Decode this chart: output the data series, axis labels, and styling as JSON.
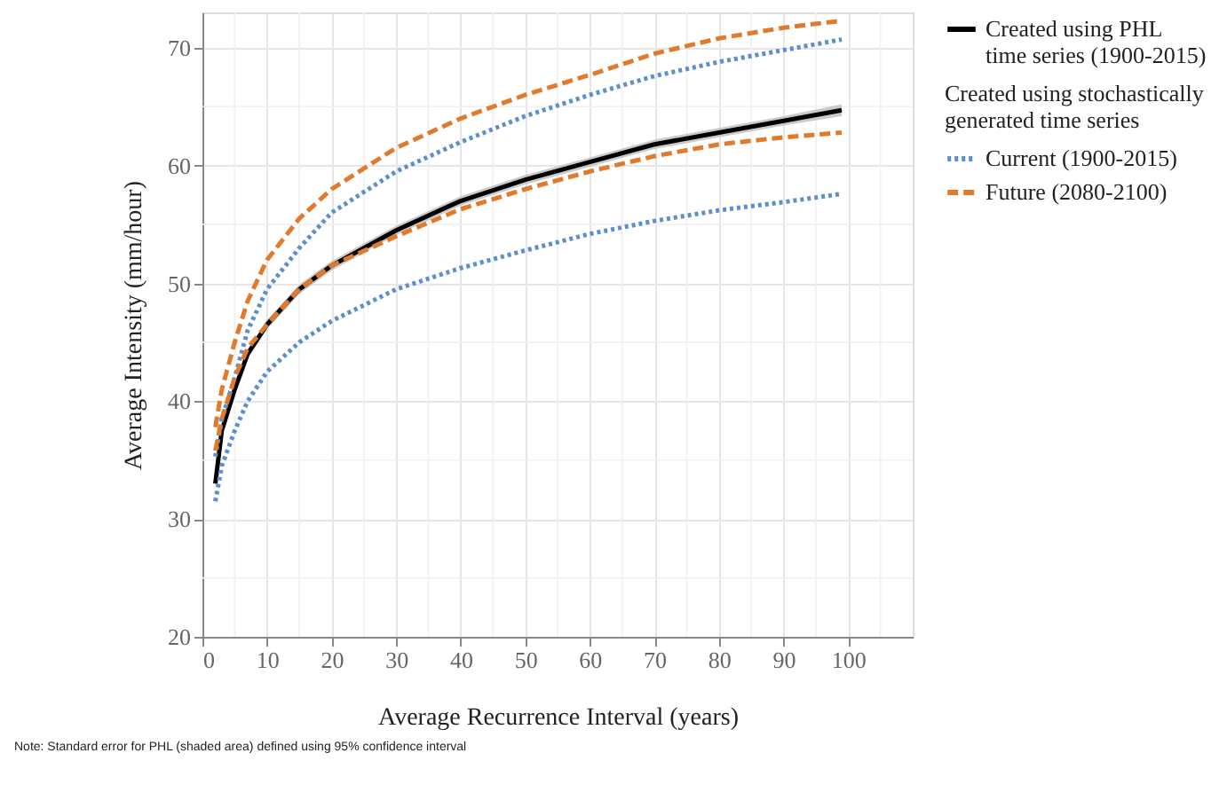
{
  "chart_data": {
    "type": "line",
    "xlabel": "Average Recurrence Interval (years)",
    "ylabel": "Average Intensity (mm/hour)",
    "legend_title": "Created using stochastically generated time series",
    "xlim": [
      0,
      110
    ],
    "xticks": [
      0,
      10,
      20,
      30,
      40,
      50,
      60,
      70,
      80,
      90,
      100
    ],
    "ylim": [
      20,
      73
    ],
    "yticks": [
      20,
      30,
      40,
      50,
      60,
      70
    ],
    "grid": true,
    "legend": "right",
    "marker": "none",
    "x": [
      2,
      3,
      5,
      7,
      10,
      15,
      20,
      30,
      40,
      50,
      60,
      70,
      80,
      90,
      99
    ],
    "series": [
      {
        "name": "Created using PHL time series (1900-2015)",
        "color": "#000000",
        "line_style": "solid",
        "values": [
          33,
          37.5,
          41,
          44,
          46.5,
          49.5,
          51.5,
          54.5,
          57,
          58.8,
          60.3,
          61.8,
          62.8,
          63.8,
          64.7
        ],
        "lower": [
          32.6,
          37.1,
          40.6,
          43.6,
          46.1,
          49.1,
          51.1,
          54.1,
          56.6,
          58.4,
          59.9,
          61.4,
          62.4,
          63.4,
          64.2
        ],
        "upper": [
          33.4,
          37.9,
          41.4,
          44.4,
          46.9,
          49.9,
          51.9,
          54.9,
          57.4,
          59.2,
          60.7,
          62.2,
          63.2,
          64.2,
          65.2
        ]
      },
      {
        "name": "Current (1900-2015)",
        "color": "#5b8fd0",
        "line_style": "dotted",
        "values": [
          35.3,
          38.5,
          42,
          46,
          49.5,
          53,
          56,
          59.5,
          62,
          64.2,
          66,
          67.6,
          68.8,
          69.8,
          70.7
        ]
      },
      {
        "color": "#5b8fd0",
        "line_style": "dotted",
        "values": [
          31.5,
          34.5,
          37.5,
          40,
          42.5,
          45,
          46.8,
          49.5,
          51.3,
          52.8,
          54.2,
          55.3,
          56.2,
          56.9,
          57.6
        ]
      },
      {
        "name": "Future (2080-2100)",
        "color": "#e07b2e",
        "line_style": "dashed",
        "values": [
          37.8,
          41,
          45,
          48.5,
          52,
          55.5,
          58,
          61.5,
          64,
          66,
          67.7,
          69.5,
          70.8,
          71.7,
          72.3
        ]
      },
      {
        "color": "#e07b2e",
        "line_style": "dashed",
        "values": [
          35.8,
          38.5,
          42,
          44.5,
          46.5,
          49.5,
          51.5,
          54,
          56.3,
          58,
          59.5,
          60.8,
          61.8,
          62.4,
          62.8
        ]
      }
    ],
    "annotations": [
      "Note: Standard error for PHL (shaded area) defined using 95% confidence interval"
    ]
  }
}
